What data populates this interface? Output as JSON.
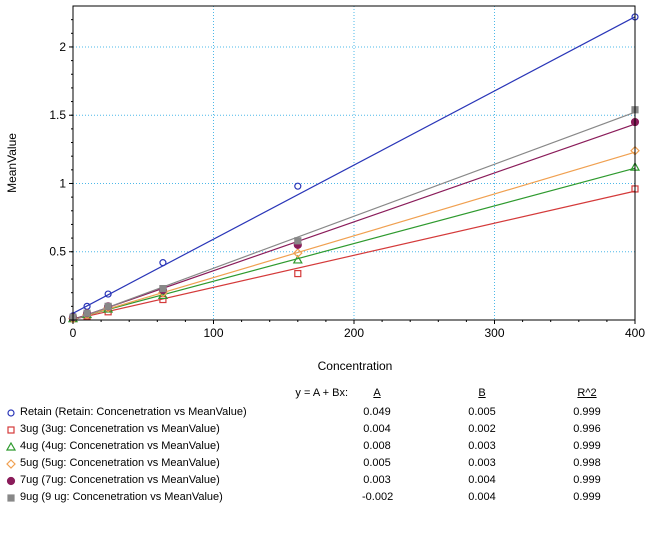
{
  "chart_data": {
    "type": "scatter",
    "title": "",
    "xlabel": "Concentration",
    "ylabel": "MeanValue",
    "xlim": [
      0,
      400
    ],
    "ylim": [
      0,
      2.3
    ],
    "xticks": [
      0,
      100,
      200,
      300,
      400
    ],
    "yticks": [
      0,
      0.5,
      1,
      1.5,
      2
    ],
    "xtick_labels": [
      "0",
      "100",
      "200",
      "300",
      "400"
    ],
    "ytick_labels": [
      "0",
      "0.5",
      "1",
      "1.5",
      "2"
    ],
    "grid": true,
    "legend_position": "bottom",
    "series": [
      {
        "name": "Retain (Retain: Concenetration vs MeanValue)",
        "marker": "circle-open",
        "color": "#2a36b8",
        "line": [
          0.049,
          0.00543
        ],
        "x": [
          0,
          10,
          25,
          64,
          160,
          400
        ],
        "y": [
          0.03,
          0.1,
          0.19,
          0.42,
          0.98,
          2.22
        ]
      },
      {
        "name": "3ug (3ug: Concenetration vs MeanValue)",
        "marker": "square-open",
        "color": "#d43a3a",
        "line": [
          0.004,
          0.00235
        ],
        "x": [
          0,
          10,
          25,
          64,
          160,
          400
        ],
        "y": [
          0.01,
          0.03,
          0.06,
          0.15,
          0.34,
          0.96
        ]
      },
      {
        "name": "4ug (4ug: Concenetration vs MeanValue)",
        "marker": "triangle-open",
        "color": "#2e9a2e",
        "line": [
          0.008,
          0.00276
        ],
        "x": [
          0,
          10,
          25,
          64,
          160,
          400
        ],
        "y": [
          0.01,
          0.04,
          0.08,
          0.18,
          0.44,
          1.12
        ]
      },
      {
        "name": "5ug (5ug: Concenetration vs MeanValue)",
        "marker": "diamond-open",
        "color": "#f0a050",
        "line": [
          0.005,
          0.00306
        ],
        "x": [
          0,
          10,
          25,
          64,
          160,
          400
        ],
        "y": [
          0.01,
          0.04,
          0.09,
          0.2,
          0.49,
          1.24
        ]
      },
      {
        "name": "7ug (7ug: Concenetration vs MeanValue)",
        "marker": "circle-filled",
        "color": "#8a1c5a",
        "line": [
          0.003,
          0.00358
        ],
        "x": [
          0,
          10,
          25,
          64,
          160,
          400
        ],
        "y": [
          0.02,
          0.05,
          0.1,
          0.22,
          0.55,
          1.45
        ]
      },
      {
        "name": "9ug (9 ug: Concenetration vs MeanValue)",
        "marker": "square-filled",
        "color": "#888888",
        "line": [
          -0.002,
          0.00381
        ],
        "x": [
          0,
          10,
          25,
          64,
          160,
          400
        ],
        "y": [
          0.02,
          0.05,
          0.1,
          0.23,
          0.58,
          1.54
        ]
      }
    ]
  },
  "legend_table": {
    "equation": "y = A + Bx:",
    "col_a": "A",
    "col_b": "B",
    "col_r2": "R^2",
    "rows": [
      {
        "a": "0.049",
        "b": "0.005",
        "r2": "0.999"
      },
      {
        "a": "0.004",
        "b": "0.002",
        "r2": "0.996"
      },
      {
        "a": "0.008",
        "b": "0.003",
        "r2": "0.999"
      },
      {
        "a": "0.005",
        "b": "0.003",
        "r2": "0.998"
      },
      {
        "a": "0.003",
        "b": "0.004",
        "r2": "0.999"
      },
      {
        "a": "-0.002",
        "b": "0.004",
        "r2": "0.999"
      }
    ]
  }
}
